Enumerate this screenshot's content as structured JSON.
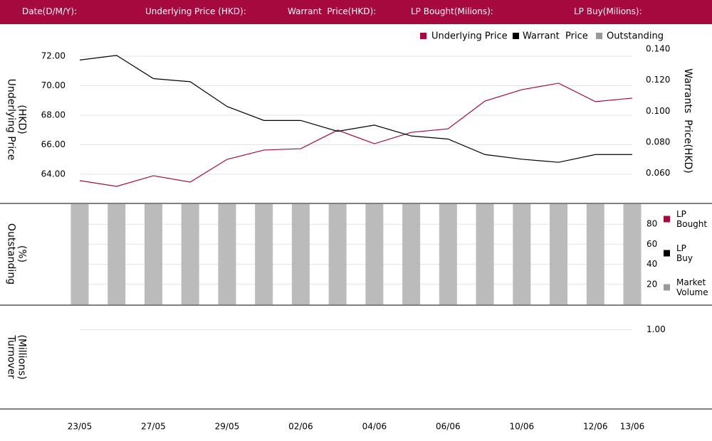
{
  "header": {
    "fields": [
      "Date(D/M/Y):",
      "Underlying Price (HKD):",
      "Warrant  Price(HKD):",
      "LP Bought(Milions):",
      "LP Buy(Milions):"
    ]
  },
  "chart_data": [
    {
      "type": "line",
      "ylabel": [
        "Underlying Price",
        "(HKD)"
      ],
      "y2label": "Warrants  Price(HKD)",
      "ylim": [
        62.5,
        73
      ],
      "yticks": [
        {
          "value": 64,
          "label": "64.00"
        },
        {
          "value": 66,
          "label": "66.00"
        },
        {
          "value": 68,
          "label": "68.00"
        },
        {
          "value": 70,
          "label": "70.00"
        },
        {
          "value": 72,
          "label": "72.00"
        }
      ],
      "y2lim": [
        0.045,
        0.145
      ],
      "y2ticks": [
        {
          "value": 0.06,
          "label": "0.060"
        },
        {
          "value": 0.08,
          "label": "0.080"
        },
        {
          "value": 0.1,
          "label": "0.100"
        },
        {
          "value": 0.12,
          "label": "0.120"
        },
        {
          "value": 0.14,
          "label": "0.140"
        }
      ],
      "grid": true,
      "series": [
        {
          "name": "Underlying Price",
          "color": "#a6093d",
          "values": [
            63.57,
            63.18,
            63.9,
            63.47,
            65.01,
            65.64,
            65.73,
            66.99,
            66.07,
            66.84,
            67.08,
            68.96,
            69.73,
            70.17,
            68.92,
            69.16
          ]
        },
        {
          "name": "Warrant  Price",
          "color": "#000000",
          "axis": "y2",
          "values": [
            0.133,
            0.136,
            0.121,
            0.119,
            0.103,
            0.094,
            0.094,
            0.087,
            0.091,
            0.084,
            0.082,
            0.072,
            0.069,
            0.067,
            0.072,
            0.072
          ]
        }
      ]
    },
    {
      "type": "bar",
      "ylabel": [
        "Outstanding",
        "(%)"
      ],
      "ylim": [
        0,
        100
      ],
      "yticks": [
        20,
        40,
        60,
        80
      ],
      "grid": true,
      "series": [
        {
          "name": "Outstanding",
          "color": "#bbbbbb",
          "values": [
            100,
            100,
            100,
            100,
            100,
            100,
            100,
            100,
            100,
            100,
            100,
            100,
            100,
            100,
            100,
            100
          ]
        }
      ],
      "legend": [
        {
          "name": "LP Bought",
          "color": "#a6093d"
        },
        {
          "name": "LP Buy",
          "color": "#000000"
        },
        {
          "name": "Market Volume",
          "color": "#999999"
        }
      ]
    },
    {
      "type": "line",
      "ylabel": [
        "Turnover",
        "(Millions)"
      ],
      "ylim": [
        0,
        1.3
      ],
      "yticks": [
        {
          "value": 1,
          "label": "1.00"
        }
      ],
      "grid": true,
      "categories": [
        "23/05",
        null,
        "27/05",
        null,
        "29/05",
        null,
        "02/06",
        null,
        "04/06",
        null,
        "06/06",
        null,
        "10/06",
        null,
        "12/06",
        "13/06"
      ]
    }
  ]
}
